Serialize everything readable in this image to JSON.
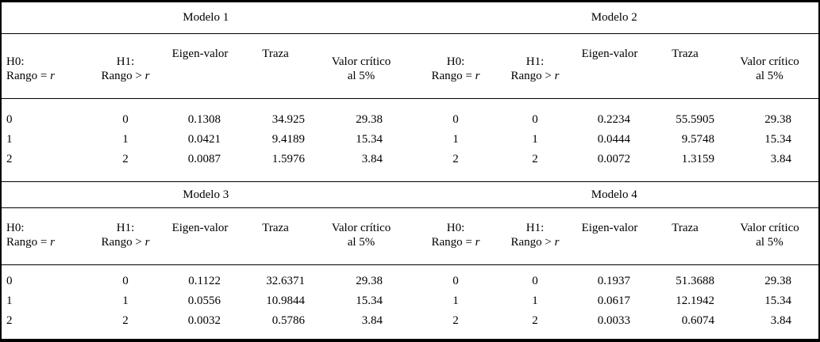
{
  "page": {
    "background": "#ffffff",
    "line_color": "#000000",
    "text_color": "#000000"
  },
  "header": {
    "h0_line1": "H0:",
    "h0_line2_prefix": "Rango = ",
    "h1_line1": "H1:",
    "h1_line2_prefix": "Rango > ",
    "rank_var": "r",
    "eigen": "Eigen-valor",
    "trace": "Traza",
    "crit_line1": "Valor crítico",
    "crit_line2": "al 5%"
  },
  "models": [
    {
      "title": "Modelo 1",
      "rows": [
        [
          "0",
          "0",
          "0.1308",
          "34.925",
          "29.38"
        ],
        [
          "1",
          "1",
          "0.0421",
          "9.4189",
          "15.34"
        ],
        [
          "2",
          "2",
          "0.0087",
          "1.5976",
          "3.84"
        ]
      ]
    },
    {
      "title": "Modelo 2",
      "rows": [
        [
          "0",
          "0",
          "0.2234",
          "55.5905",
          "29.38"
        ],
        [
          "1",
          "1",
          "0.0444",
          "9.5748",
          "15.34"
        ],
        [
          "2",
          "2",
          "0.0072",
          "1.3159",
          "3.84"
        ]
      ]
    },
    {
      "title": "Modelo 3",
      "rows": [
        [
          "0",
          "0",
          "0.1122",
          "32.6371",
          "29.38"
        ],
        [
          "1",
          "1",
          "0.0556",
          "10.9844",
          "15.34"
        ],
        [
          "2",
          "2",
          "0.0032",
          "0.5786",
          "3.84"
        ]
      ]
    },
    {
      "title": "Modelo 4",
      "rows": [
        [
          "0",
          "0",
          "0.1937",
          "51.3688",
          "29.38"
        ],
        [
          "1",
          "1",
          "0.0617",
          "12.1942",
          "15.34"
        ],
        [
          "2",
          "2",
          "0.0033",
          "0.6074",
          "3.84"
        ]
      ]
    }
  ]
}
